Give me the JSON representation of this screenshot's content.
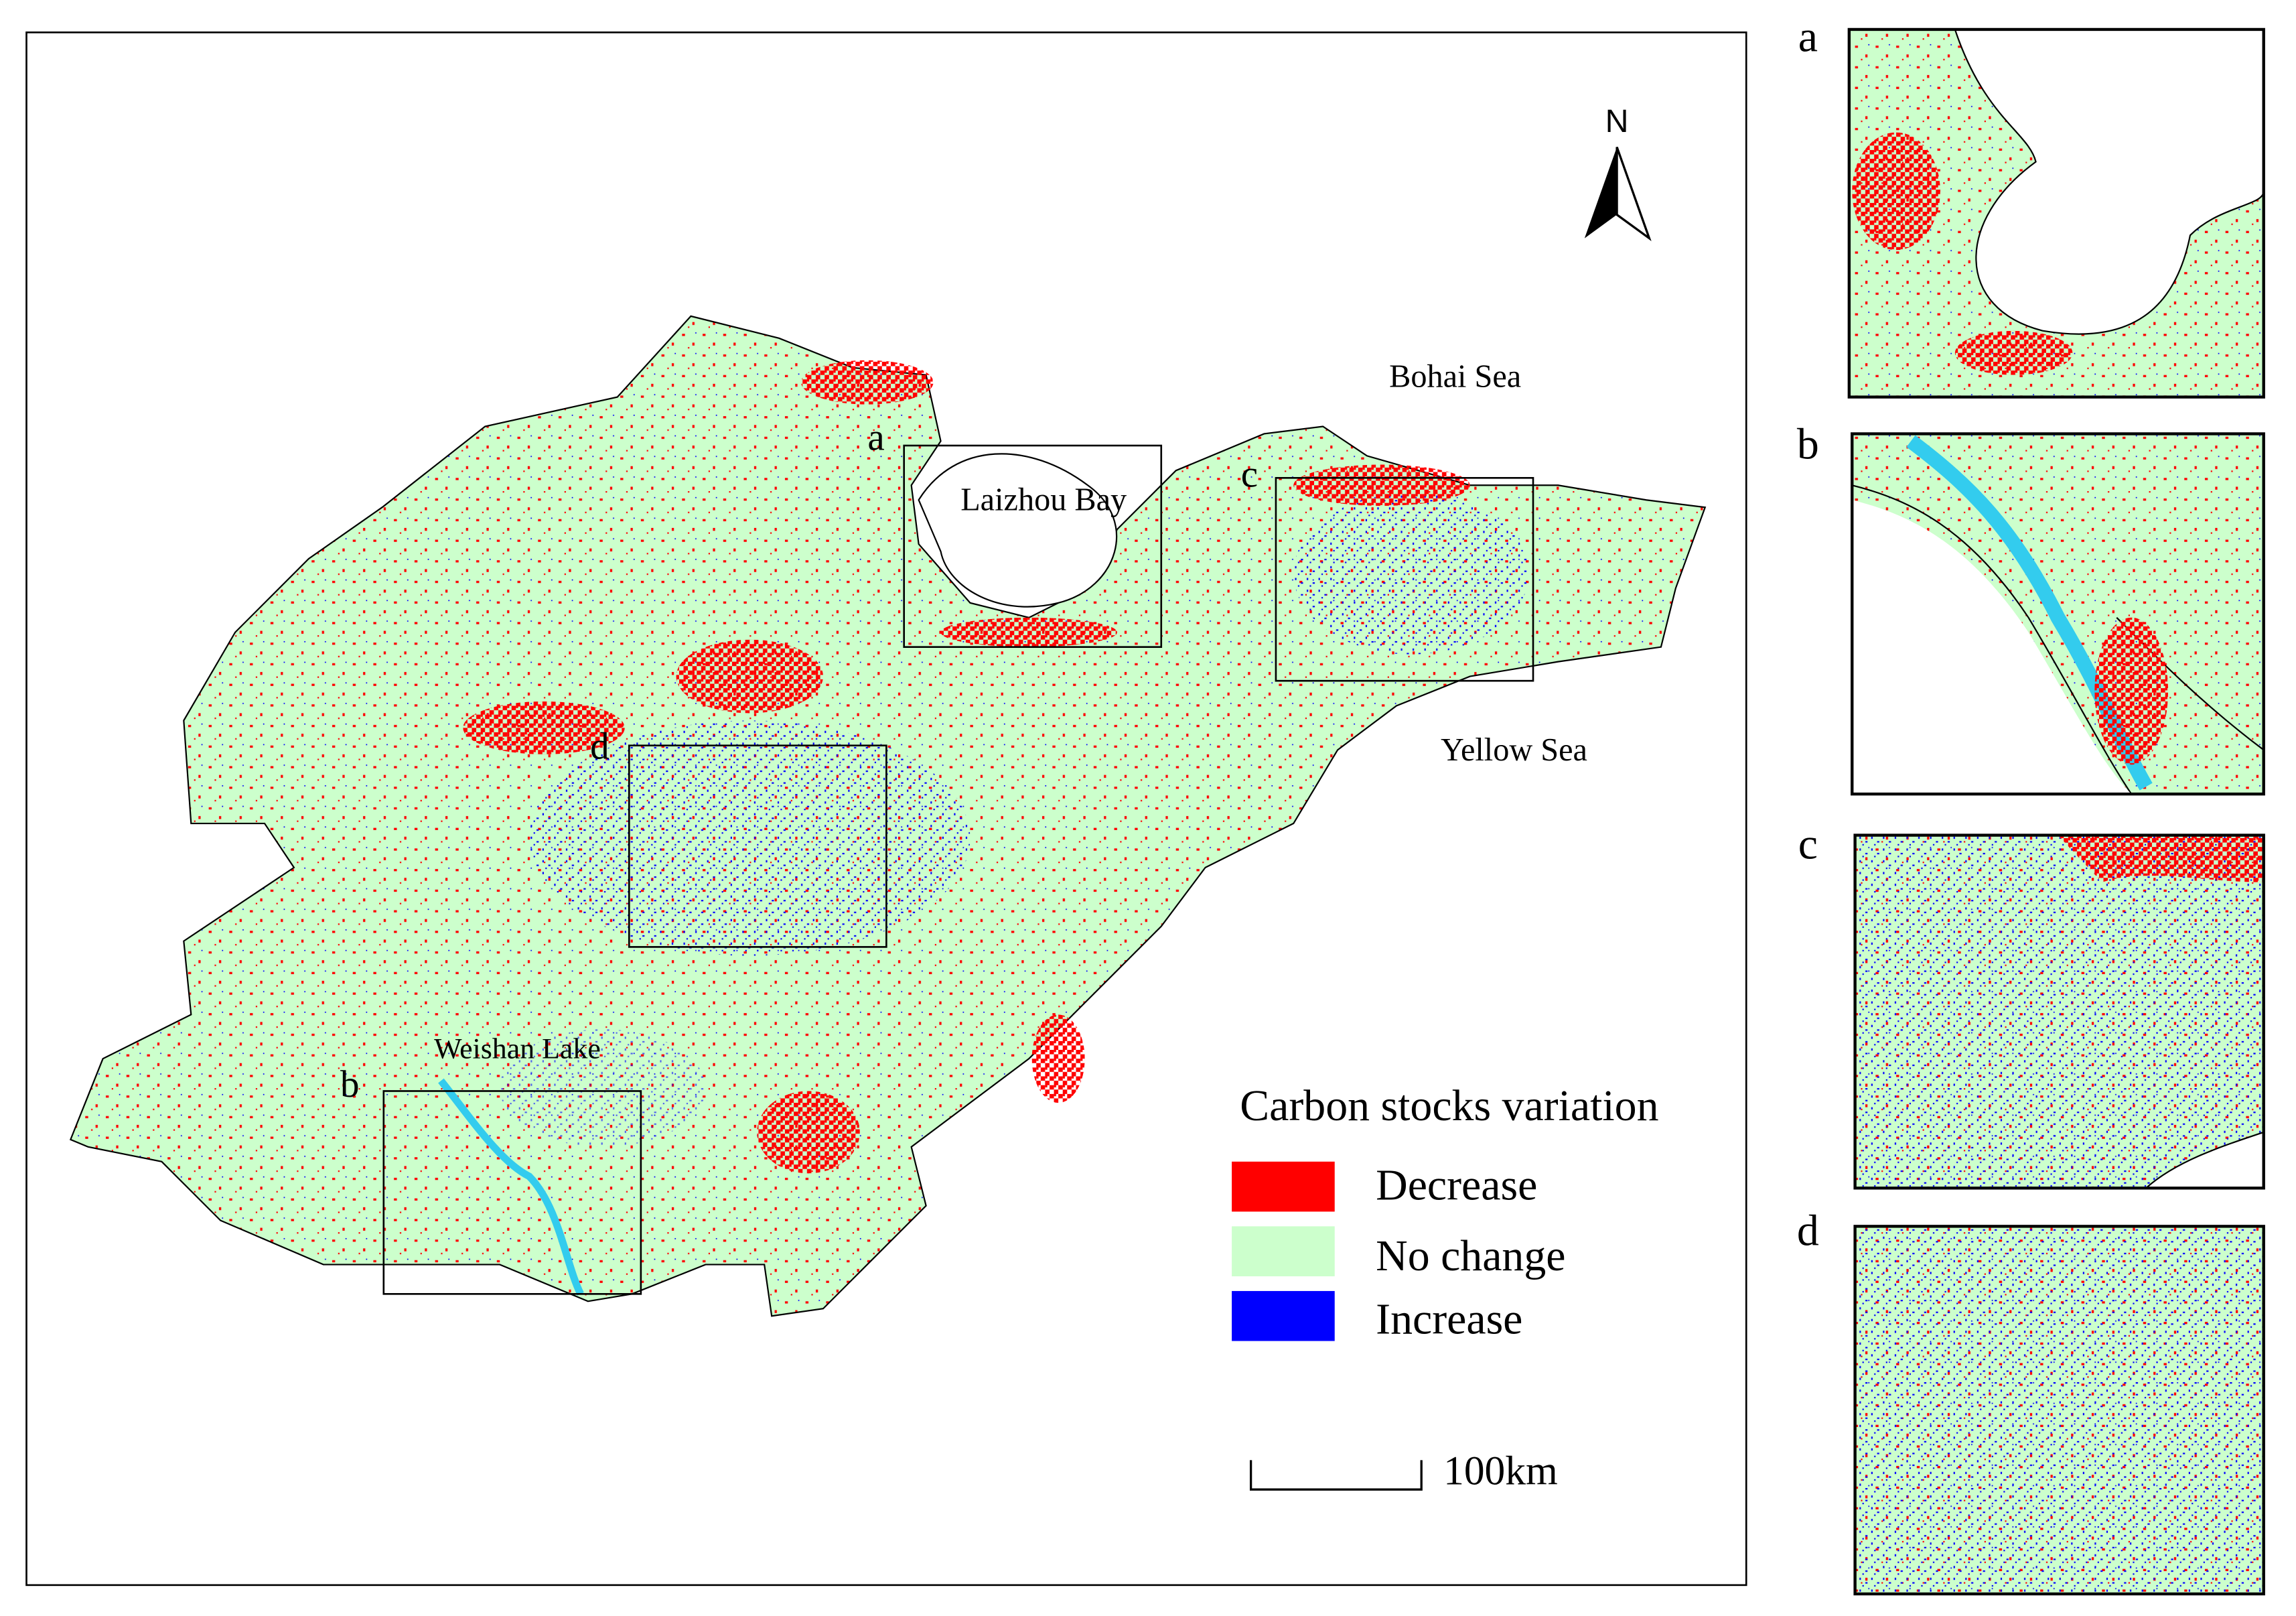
{
  "north": "N",
  "place_labels": {
    "bohai_sea": "Bohai Sea",
    "yellow_sea": "Yellow Sea",
    "laizhou_bay": "Laizhou Bay",
    "weishan_lake": "Weishan Lake"
  },
  "region_labels": [
    "a",
    "b",
    "c",
    "d"
  ],
  "legend": {
    "title": "Carbon stocks variation",
    "items": [
      {
        "label": "Decrease",
        "color": "#ff0000"
      },
      {
        "label": "No change",
        "color": "#ccffcc"
      },
      {
        "label": "Increase",
        "color": "#0000ff"
      }
    ]
  },
  "scale_bar": "100km",
  "inset_labels": [
    "a",
    "b",
    "c",
    "d"
  ]
}
